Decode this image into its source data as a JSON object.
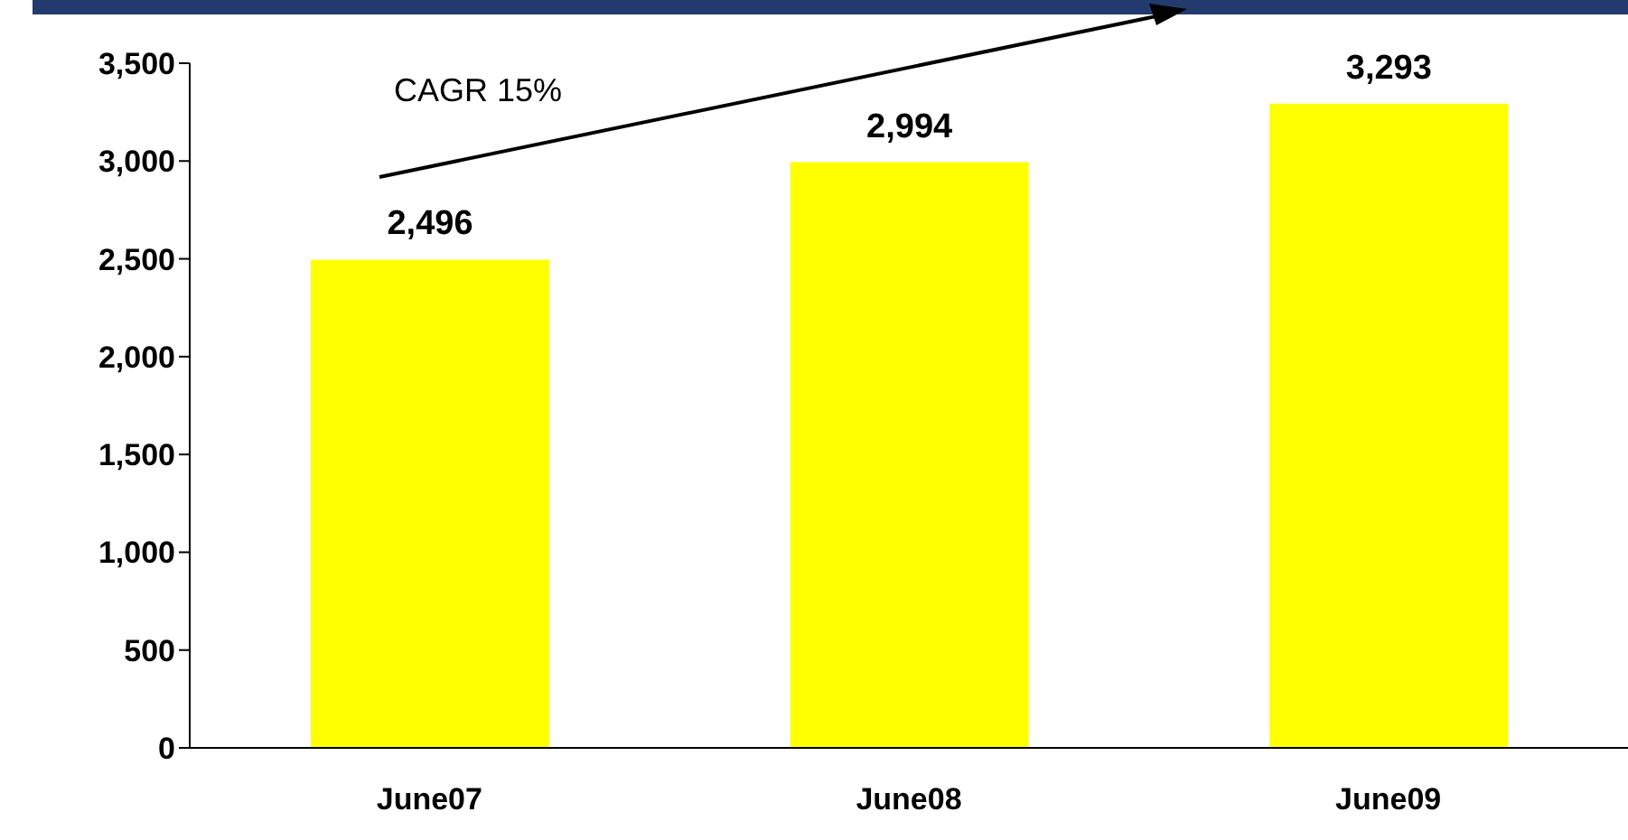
{
  "chart_data": {
    "type": "bar",
    "categories": [
      "June07",
      "June08",
      "June09"
    ],
    "values": [
      2496,
      2994,
      3293
    ],
    "color": "#ffff00",
    "ylim": [
      0,
      3500
    ],
    "yticks": [
      {
        "value": 0,
        "label": "0"
      },
      {
        "value": 500,
        "label": "500"
      },
      {
        "value": 1000,
        "label": "1,000"
      },
      {
        "value": 1500,
        "label": "1,500"
      },
      {
        "value": 2000,
        "label": "2,000"
      },
      {
        "value": 2500,
        "label": "2,500"
      },
      {
        "value": 3000,
        "label": "3,000"
      },
      {
        "value": 3500,
        "label": "3,500"
      }
    ],
    "data_labels": true,
    "value_labels": [
      "2,496",
      "2,994",
      "3,293"
    ],
    "grid": false,
    "legend": false,
    "annotations": [
      "CAGR 15%"
    ]
  }
}
